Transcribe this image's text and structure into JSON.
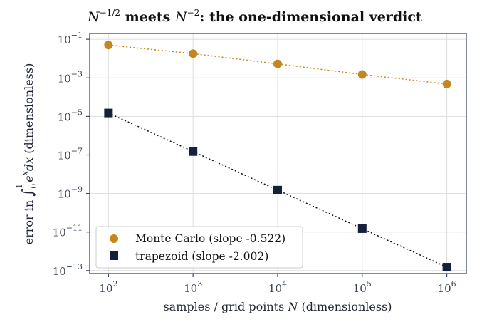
{
  "chart_data": {
    "type": "scatter",
    "title": {
      "lead": "N",
      "lead_exp": "−1/2",
      "mid": " meets ",
      "mid_var": "N",
      "mid_exp": "−2",
      "tail": ": the one-dimensional verdict"
    },
    "xlabel": {
      "pre": "samples / grid points ",
      "var": "N",
      "post": " (dimensionless)"
    },
    "ylabel": {
      "pre": "error in ",
      "integral_sign": "∫",
      "lower": "0",
      "upper": "1",
      "integrand": "e",
      "integrand_exp": "x",
      "dx": "dx",
      "post": " (dimensionless)"
    },
    "x_scale": "log",
    "y_scale": "log",
    "xlim": [
      60,
      1700000
    ],
    "ylim": [
      7e-14,
      0.2
    ],
    "grid": true,
    "legend_position": "lower-left",
    "xticks": [
      {
        "value": 100,
        "base": "10",
        "exp": "2"
      },
      {
        "value": 1000,
        "base": "10",
        "exp": "3"
      },
      {
        "value": 10000,
        "base": "10",
        "exp": "4"
      },
      {
        "value": 100000,
        "base": "10",
        "exp": "5"
      },
      {
        "value": 1000000,
        "base": "10",
        "exp": "6"
      }
    ],
    "yticks": [
      {
        "value": 0.1,
        "base": "10",
        "exp": "−1"
      },
      {
        "value": 0.001,
        "base": "10",
        "exp": "−3"
      },
      {
        "value": 1e-05,
        "base": "10",
        "exp": "−5"
      },
      {
        "value": 1e-07,
        "base": "10",
        "exp": "−7"
      },
      {
        "value": 1e-09,
        "base": "10",
        "exp": "−9"
      },
      {
        "value": 1e-11,
        "base": "10",
        "exp": "−11"
      },
      {
        "value": 1e-13,
        "base": "10",
        "exp": "−13"
      }
    ],
    "x": [
      100,
      1000,
      10000,
      100000,
      1000000
    ],
    "series": [
      {
        "name": "Monte Carlo (slope -0.522)",
        "marker": "circle",
        "color": "#c4871f",
        "values": [
          0.05,
          0.018,
          0.0053,
          0.0015,
          0.00048
        ]
      },
      {
        "name": "trapezoid (slope -2.002)",
        "marker": "square",
        "color": "#15213a",
        "values": [
          1.5e-05,
          1.5e-07,
          1.5e-09,
          1.5e-11,
          1.5e-13
        ]
      }
    ],
    "colors": {
      "axes_frame": "#3a4a6b",
      "grid": "#dddddd",
      "text": "#111111"
    }
  }
}
